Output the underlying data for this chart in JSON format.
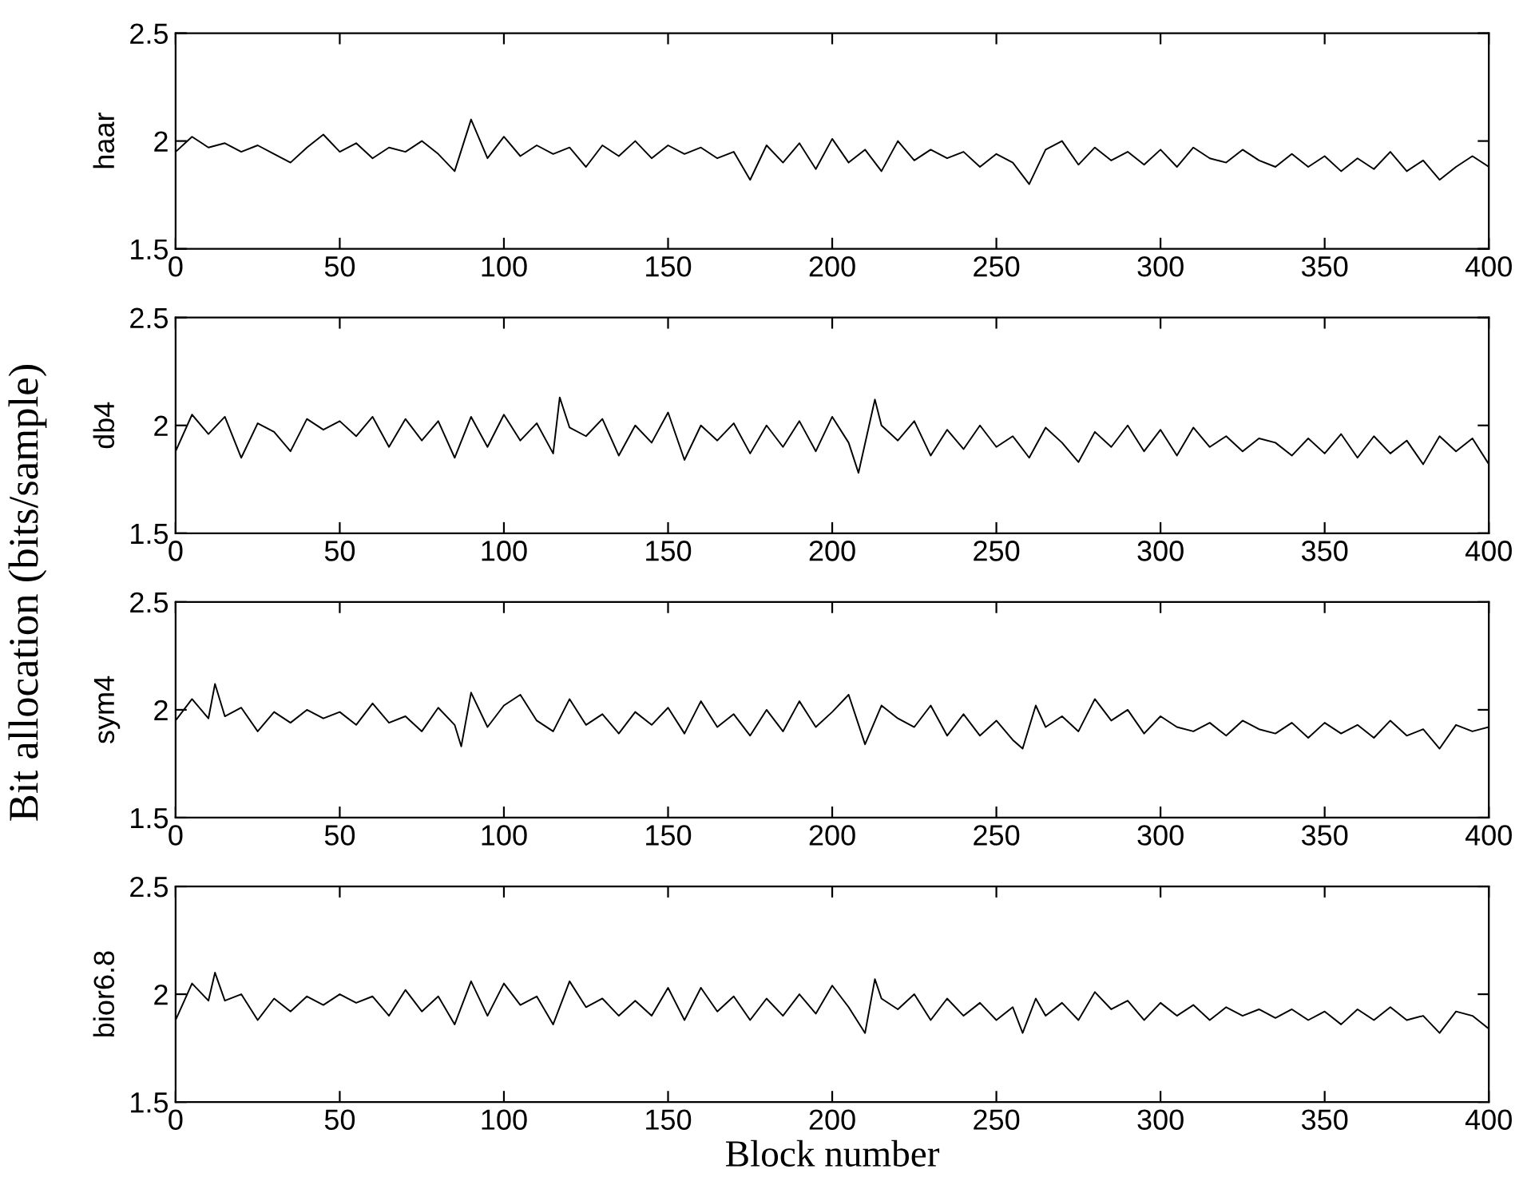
{
  "chart_data": [
    {
      "type": "line",
      "ylabel": "haar",
      "xlim": [
        0,
        400
      ],
      "ylim": [
        1.5,
        2.5
      ],
      "xticks": [
        0,
        50,
        100,
        150,
        200,
        250,
        300,
        350,
        400
      ],
      "yticks": [
        1.5,
        2,
        2.5
      ],
      "grid": false,
      "legend": false,
      "annotations": [
        "Bit allocation (bits/sample)"
      ],
      "series": [
        {
          "color": "#000000",
          "x": [
            0,
            5,
            10,
            15,
            20,
            25,
            30,
            35,
            40,
            45,
            50,
            55,
            60,
            65,
            70,
            75,
            80,
            85,
            90,
            95,
            100,
            105,
            110,
            115,
            120,
            125,
            130,
            135,
            140,
            145,
            150,
            155,
            160,
            165,
            170,
            175,
            180,
            185,
            190,
            195,
            200,
            205,
            210,
            215,
            220,
            225,
            230,
            235,
            240,
            245,
            250,
            255,
            260,
            265,
            270,
            275,
            280,
            285,
            290,
            295,
            300,
            305,
            310,
            315,
            320,
            325,
            330,
            335,
            340,
            345,
            350,
            355,
            360,
            365,
            370,
            375,
            380,
            385,
            390,
            395,
            400
          ],
          "values": [
            1.95,
            2.02,
            1.97,
            1.99,
            1.95,
            1.98,
            1.94,
            1.9,
            1.97,
            2.03,
            1.95,
            1.99,
            1.92,
            1.97,
            1.95,
            2.0,
            1.94,
            1.86,
            2.1,
            1.92,
            2.02,
            1.93,
            1.98,
            1.94,
            1.97,
            1.88,
            1.98,
            1.93,
            2.0,
            1.92,
            1.98,
            1.94,
            1.97,
            1.92,
            1.95,
            1.82,
            1.98,
            1.9,
            1.99,
            1.87,
            2.01,
            1.9,
            1.96,
            1.86,
            2.0,
            1.91,
            1.96,
            1.92,
            1.95,
            1.88,
            1.94,
            1.9,
            1.8,
            1.96,
            2.0,
            1.89,
            1.97,
            1.91,
            1.95,
            1.89,
            1.96,
            1.88,
            1.97,
            1.92,
            1.9,
            1.96,
            1.91,
            1.88,
            1.94,
            1.88,
            1.93,
            1.86,
            1.92,
            1.87,
            1.95,
            1.86,
            1.91,
            1.82,
            1.88,
            1.93,
            1.88
          ]
        }
      ]
    },
    {
      "type": "line",
      "ylabel": "db4",
      "xlim": [
        0,
        400
      ],
      "ylim": [
        1.5,
        2.5
      ],
      "xticks": [
        0,
        50,
        100,
        150,
        200,
        250,
        300,
        350,
        400
      ],
      "yticks": [
        1.5,
        2,
        2.5
      ],
      "grid": false,
      "legend": false,
      "series": [
        {
          "color": "#000000",
          "x": [
            0,
            5,
            10,
            15,
            20,
            25,
            30,
            35,
            40,
            45,
            50,
            55,
            60,
            65,
            70,
            75,
            80,
            85,
            90,
            95,
            100,
            105,
            110,
            115,
            117,
            120,
            125,
            130,
            135,
            140,
            145,
            150,
            155,
            160,
            165,
            170,
            175,
            180,
            185,
            190,
            195,
            200,
            205,
            208,
            213,
            215,
            220,
            225,
            230,
            235,
            240,
            245,
            250,
            255,
            260,
            265,
            270,
            275,
            280,
            285,
            290,
            295,
            300,
            305,
            310,
            315,
            320,
            325,
            330,
            335,
            340,
            345,
            350,
            355,
            360,
            365,
            370,
            375,
            380,
            385,
            390,
            395,
            400
          ],
          "values": [
            1.88,
            2.05,
            1.96,
            2.04,
            1.85,
            2.01,
            1.97,
            1.88,
            2.03,
            1.98,
            2.02,
            1.95,
            2.04,
            1.9,
            2.03,
            1.93,
            2.02,
            1.85,
            2.04,
            1.9,
            2.05,
            1.93,
            2.01,
            1.87,
            2.13,
            1.99,
            1.95,
            2.03,
            1.86,
            2.0,
            1.92,
            2.06,
            1.84,
            2.0,
            1.93,
            2.01,
            1.87,
            2.0,
            1.9,
            2.02,
            1.88,
            2.04,
            1.92,
            1.78,
            2.12,
            2.0,
            1.93,
            2.02,
            1.86,
            1.98,
            1.89,
            2.0,
            1.9,
            1.95,
            1.85,
            1.99,
            1.92,
            1.83,
            1.97,
            1.9,
            2.0,
            1.88,
            1.98,
            1.86,
            1.99,
            1.9,
            1.95,
            1.88,
            1.94,
            1.92,
            1.86,
            1.94,
            1.87,
            1.96,
            1.85,
            1.95,
            1.87,
            1.93,
            1.82,
            1.95,
            1.88,
            1.94,
            1.82
          ]
        }
      ]
    },
    {
      "type": "line",
      "ylabel": "sym4",
      "xlim": [
        0,
        400
      ],
      "ylim": [
        1.5,
        2.5
      ],
      "xticks": [
        0,
        50,
        100,
        150,
        200,
        250,
        300,
        350,
        400
      ],
      "yticks": [
        1.5,
        2,
        2.5
      ],
      "grid": false,
      "legend": false,
      "series": [
        {
          "color": "#000000",
          "x": [
            0,
            5,
            10,
            12,
            15,
            20,
            25,
            30,
            35,
            40,
            45,
            50,
            55,
            60,
            65,
            70,
            75,
            80,
            85,
            87,
            90,
            95,
            100,
            105,
            110,
            115,
            120,
            125,
            130,
            135,
            140,
            145,
            150,
            155,
            160,
            165,
            170,
            175,
            180,
            185,
            190,
            195,
            200,
            205,
            210,
            215,
            220,
            225,
            230,
            235,
            240,
            245,
            250,
            255,
            258,
            262,
            265,
            270,
            275,
            280,
            285,
            290,
            295,
            300,
            305,
            310,
            315,
            320,
            325,
            330,
            335,
            340,
            345,
            350,
            355,
            360,
            365,
            370,
            375,
            380,
            385,
            390,
            395,
            400
          ],
          "values": [
            1.95,
            2.05,
            1.96,
            2.12,
            1.97,
            2.01,
            1.9,
            1.99,
            1.94,
            2.0,
            1.96,
            1.99,
            1.93,
            2.03,
            1.94,
            1.97,
            1.9,
            2.01,
            1.93,
            1.83,
            2.08,
            1.92,
            2.02,
            2.07,
            1.95,
            1.9,
            2.05,
            1.93,
            1.98,
            1.89,
            1.99,
            1.93,
            2.01,
            1.89,
            2.04,
            1.92,
            1.98,
            1.88,
            2.0,
            1.9,
            2.04,
            1.92,
            1.99,
            2.07,
            1.84,
            2.02,
            1.96,
            1.92,
            2.02,
            1.88,
            1.98,
            1.88,
            1.95,
            1.86,
            1.82,
            2.02,
            1.92,
            1.97,
            1.9,
            2.05,
            1.95,
            2.0,
            1.89,
            1.97,
            1.92,
            1.9,
            1.94,
            1.88,
            1.95,
            1.91,
            1.89,
            1.94,
            1.87,
            1.94,
            1.89,
            1.93,
            1.87,
            1.95,
            1.88,
            1.91,
            1.82,
            1.93,
            1.9,
            1.92
          ]
        }
      ]
    },
    {
      "type": "line",
      "ylabel": "bior6.8",
      "xlabel": "Block number",
      "xlim": [
        0,
        400
      ],
      "ylim": [
        1.5,
        2.5
      ],
      "xticks": [
        0,
        50,
        100,
        150,
        200,
        250,
        300,
        350,
        400
      ],
      "yticks": [
        1.5,
        2,
        2.5
      ],
      "grid": false,
      "legend": false,
      "series": [
        {
          "color": "#000000",
          "x": [
            0,
            5,
            10,
            12,
            15,
            20,
            25,
            30,
            35,
            40,
            45,
            50,
            55,
            60,
            65,
            70,
            75,
            80,
            85,
            90,
            95,
            100,
            105,
            110,
            115,
            120,
            125,
            130,
            135,
            140,
            145,
            150,
            155,
            160,
            165,
            170,
            175,
            180,
            185,
            190,
            195,
            200,
            205,
            210,
            213,
            215,
            220,
            225,
            230,
            235,
            240,
            245,
            250,
            255,
            258,
            262,
            265,
            270,
            275,
            280,
            285,
            290,
            295,
            300,
            305,
            310,
            315,
            320,
            325,
            330,
            335,
            340,
            345,
            350,
            355,
            360,
            365,
            370,
            375,
            380,
            385,
            390,
            395,
            400
          ],
          "values": [
            1.88,
            2.05,
            1.97,
            2.1,
            1.97,
            2.0,
            1.88,
            1.98,
            1.92,
            1.99,
            1.95,
            2.0,
            1.96,
            1.99,
            1.9,
            2.02,
            1.92,
            1.99,
            1.86,
            2.06,
            1.9,
            2.05,
            1.95,
            1.99,
            1.86,
            2.06,
            1.94,
            1.98,
            1.9,
            1.97,
            1.9,
            2.03,
            1.88,
            2.03,
            1.92,
            1.99,
            1.88,
            1.98,
            1.9,
            2.0,
            1.91,
            2.04,
            1.94,
            1.82,
            2.07,
            1.98,
            1.93,
            2.0,
            1.88,
            1.98,
            1.9,
            1.96,
            1.88,
            1.94,
            1.82,
            1.98,
            1.9,
            1.96,
            1.88,
            2.01,
            1.93,
            1.97,
            1.88,
            1.96,
            1.9,
            1.95,
            1.88,
            1.94,
            1.9,
            1.93,
            1.89,
            1.93,
            1.88,
            1.92,
            1.86,
            1.93,
            1.88,
            1.94,
            1.88,
            1.9,
            1.82,
            1.92,
            1.9,
            1.84
          ]
        }
      ]
    }
  ]
}
